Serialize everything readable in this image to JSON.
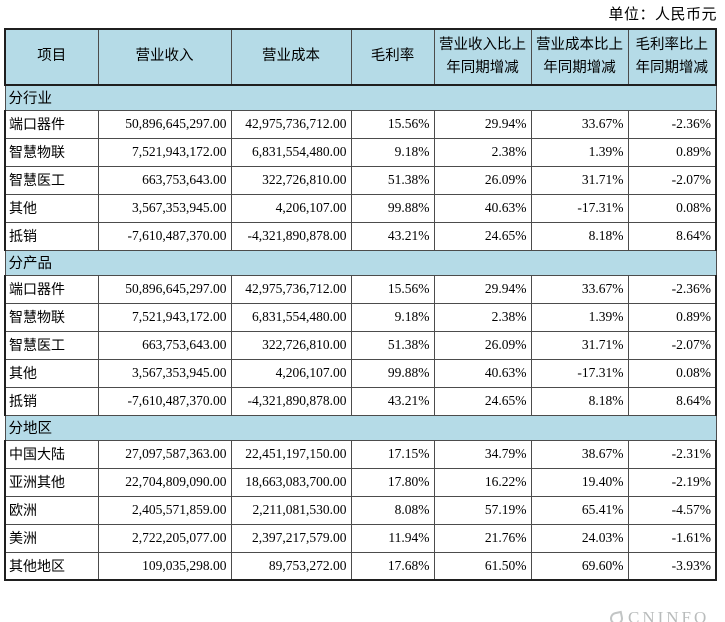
{
  "unit_label": "单位：人民币元",
  "colors": {
    "header_bg": "#b5dbe7",
    "border": "#4c4c4c",
    "thick_border": "#1f1f1f",
    "watermark": "#b9bcbc"
  },
  "watermark": {
    "text": "CNINFO"
  },
  "table": {
    "columns": [
      "项目",
      "营业收入",
      "营业成本",
      "毛利率",
      "营业收入比上年同期增减",
      "营业成本比上年同期增减",
      "毛利率比上年同期增减"
    ],
    "sections": [
      {
        "label": "分行业",
        "rows": [
          {
            "cells": [
              "端口器件",
              "50,896,645,297.00",
              "42,975,736,712.00",
              "15.56%",
              "29.94%",
              "33.67%",
              "-2.36%"
            ]
          },
          {
            "cells": [
              "智慧物联",
              "7,521,943,172.00",
              "6,831,554,480.00",
              "9.18%",
              "2.38%",
              "1.39%",
              "0.89%"
            ]
          },
          {
            "cells": [
              "智慧医工",
              "663,753,643.00",
              "322,726,810.00",
              "51.38%",
              "26.09%",
              "31.71%",
              "-2.07%"
            ]
          },
          {
            "cells": [
              "其他",
              "3,567,353,945.00",
              "4,206,107.00",
              "99.88%",
              "40.63%",
              "-17.31%",
              "0.08%"
            ]
          },
          {
            "cells": [
              "抵销",
              "-7,610,487,370.00",
              "-4,321,890,878.00",
              "43.21%",
              "24.65%",
              "8.18%",
              "8.64%"
            ]
          }
        ]
      },
      {
        "label": "分产品",
        "rows": [
          {
            "cells": [
              "端口器件",
              "50,896,645,297.00",
              "42,975,736,712.00",
              "15.56%",
              "29.94%",
              "33.67%",
              "-2.36%"
            ]
          },
          {
            "cells": [
              "智慧物联",
              "7,521,943,172.00",
              "6,831,554,480.00",
              "9.18%",
              "2.38%",
              "1.39%",
              "0.89%"
            ]
          },
          {
            "cells": [
              "智慧医工",
              "663,753,643.00",
              "322,726,810.00",
              "51.38%",
              "26.09%",
              "31.71%",
              "-2.07%"
            ]
          },
          {
            "cells": [
              "其他",
              "3,567,353,945.00",
              "4,206,107.00",
              "99.88%",
              "40.63%",
              "-17.31%",
              "0.08%"
            ]
          },
          {
            "cells": [
              "抵销",
              "-7,610,487,370.00",
              "-4,321,890,878.00",
              "43.21%",
              "24.65%",
              "8.18%",
              "8.64%"
            ]
          }
        ]
      },
      {
        "label": "分地区",
        "rows": [
          {
            "cells": [
              "中国大陆",
              "27,097,587,363.00",
              "22,451,197,150.00",
              "17.15%",
              "34.79%",
              "38.67%",
              "-2.31%"
            ]
          },
          {
            "cells": [
              "亚洲其他",
              "22,704,809,090.00",
              "18,663,083,700.00",
              "17.80%",
              "16.22%",
              "19.40%",
              "-2.19%"
            ]
          },
          {
            "cells": [
              "欧洲",
              "2,405,571,859.00",
              "2,211,081,530.00",
              "8.08%",
              "57.19%",
              "65.41%",
              "-4.57%"
            ]
          },
          {
            "cells": [
              "美洲",
              "2,722,205,077.00",
              "2,397,217,579.00",
              "11.94%",
              "21.76%",
              "24.03%",
              "-1.61%"
            ]
          },
          {
            "cells": [
              "其他地区",
              "109,035,298.00",
              "89,753,272.00",
              "17.68%",
              "61.50%",
              "69.60%",
              "-3.93%"
            ]
          }
        ]
      }
    ]
  }
}
